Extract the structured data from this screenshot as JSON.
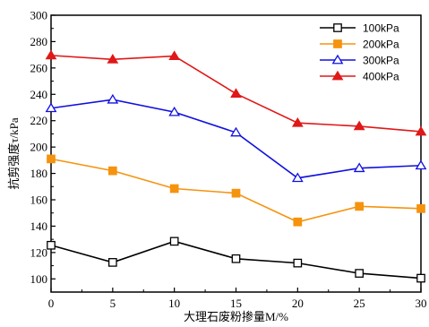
{
  "chart_data": {
    "type": "line",
    "xlabel": "大理石废粉掺量M/%",
    "ylabel": "抗剪强度τ/kPa",
    "x": [
      0,
      5,
      10,
      15,
      20,
      25,
      30
    ],
    "xlim": [
      0,
      30
    ],
    "ylim": [
      90,
      300
    ],
    "xticks": [
      0,
      5,
      10,
      15,
      20,
      25,
      30
    ],
    "yticks": [
      100,
      120,
      140,
      160,
      180,
      200,
      220,
      240,
      260,
      280,
      300
    ],
    "grid": false,
    "legend_position": "top-right",
    "series": [
      {
        "name": "100kPa",
        "color": "#000000",
        "marker": "open-square",
        "values": [
          125.5,
          112.5,
          128.5,
          115.3,
          112.0,
          104.2,
          100.5
        ]
      },
      {
        "name": "200kPa",
        "color": "#f5930f",
        "marker": "filled-square",
        "values": [
          191.0,
          182.0,
          168.5,
          165.0,
          143.2,
          155.0,
          153.3
        ]
      },
      {
        "name": "300kPa",
        "color": "#1010e0",
        "marker": "open-triangle",
        "values": [
          229.5,
          236.0,
          226.5,
          211.0,
          176.5,
          184.0,
          186.0
        ]
      },
      {
        "name": "400kPa",
        "color": "#e01818",
        "marker": "filled-triangle",
        "values": [
          269.5,
          266.5,
          269.0,
          240.5,
          218.3,
          215.8,
          211.7
        ]
      }
    ]
  }
}
